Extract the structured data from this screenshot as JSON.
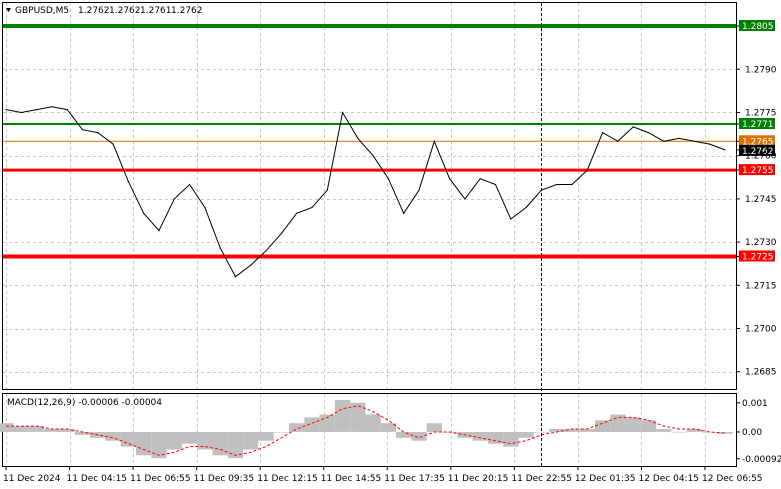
{
  "header": {
    "symbol": "GBPUSD,M5",
    "open": "1.2762",
    "high": "1.2762",
    "low": "1.2761",
    "close": "1.2762"
  },
  "macd": {
    "label": "MACD(12,26,9) -0.00006 -0.00004",
    "ticks": [
      "0.001",
      "0.00",
      "-0.00092"
    ],
    "histogram_color": "#c0c0c0",
    "signal_color": "#ff0000"
  },
  "price_axis": [
    "1.2805",
    "1.2790",
    "1.2775",
    "1.2771",
    "1.2765",
    "1.2762",
    "1.2760",
    "1.2755",
    "1.2745",
    "1.2730",
    "1.2725",
    "1.2715",
    "1.2700",
    "1.2685"
  ],
  "time_axis": [
    "11 Dec 2024",
    "11 Dec 04:15",
    "11 Dec 06:55",
    "11 Dec 09:35",
    "11 Dec 12:15",
    "11 Dec 14:55",
    "11 Dec 17:35",
    "11 Dec 20:15",
    "11 Dec 22:55",
    "12 Dec 01:35",
    "12 Dec 04:15",
    "12 Dec 06:55"
  ],
  "levels": [
    {
      "name": "resistance-top",
      "price": 1.2805,
      "label": "1.2805",
      "color": "#008000"
    },
    {
      "name": "resistance-mid",
      "price": 1.2771,
      "label": "1.2771",
      "color": "#008000"
    },
    {
      "name": "current-ask",
      "price": 1.2765,
      "label": "1.2765",
      "color": "#e07000"
    },
    {
      "name": "current-bid",
      "price": 1.2762,
      "label": "1.2762",
      "color": "#000000"
    },
    {
      "name": "support-mid",
      "price": 1.2755,
      "label": "1.2755",
      "color": "#ff0000"
    },
    {
      "name": "support-low",
      "price": 1.2725,
      "label": "1.2725",
      "color": "#ff0000"
    }
  ],
  "chart_data": {
    "type": "line",
    "x": [
      "11 Dec 00:00",
      "11 Dec 01:00",
      "11 Dec 02:00",
      "11 Dec 03:00",
      "11 Dec 04:00",
      "11 Dec 05:00",
      "11 Dec 06:00",
      "11 Dec 07:00",
      "11 Dec 07:30",
      "11 Dec 08:00",
      "11 Dec 08:30",
      "11 Dec 09:00",
      "11 Dec 09:30",
      "11 Dec 10:00",
      "11 Dec 10:30",
      "11 Dec 11:00",
      "11 Dec 11:30",
      "11 Dec 12:00",
      "11 Dec 12:30",
      "11 Dec 13:00",
      "11 Dec 13:30",
      "11 Dec 14:00",
      "11 Dec 14:30",
      "11 Dec 15:00",
      "11 Dec 15:30",
      "11 Dec 16:00",
      "11 Dec 16:30",
      "11 Dec 17:00",
      "11 Dec 17:30",
      "11 Dec 18:00",
      "11 Dec 18:30",
      "11 Dec 19:00",
      "11 Dec 19:30",
      "11 Dec 20:00",
      "11 Dec 20:30",
      "11 Dec 21:00",
      "11 Dec 22:00",
      "11 Dec 23:00",
      "12 Dec 00:00",
      "12 Dec 00:30",
      "12 Dec 01:00",
      "12 Dec 01:30",
      "12 Dec 02:00",
      "12 Dec 03:00",
      "12 Dec 04:00",
      "12 Dec 05:00",
      "12 Dec 06:00",
      "12 Dec 06:55"
    ],
    "series": [
      {
        "values": [
          1.2776,
          1.2775,
          1.2776,
          1.2777,
          1.2776,
          1.2769,
          1.2768,
          1.2764,
          1.2751,
          1.274,
          1.2734,
          1.2745,
          1.275,
          1.2742,
          1.2728,
          1.2718,
          1.2722,
          1.2727,
          1.2733,
          1.274,
          1.2742,
          1.2748,
          1.2775,
          1.2766,
          1.276,
          1.2752,
          1.274,
          1.2748,
          1.2765,
          1.2752,
          1.2745,
          1.2752,
          1.275,
          1.2738,
          1.2742,
          1.2748,
          1.275,
          1.275,
          1.2755,
          1.2768,
          1.2765,
          1.277,
          1.2768,
          1.2765,
          1.2766,
          1.2765,
          1.2764,
          1.2762
        ]
      }
    ],
    "ylim": [
      1.2679,
      1.2813
    ]
  },
  "macd_data": {
    "hist": [
      0.0003,
      0.0002,
      0.0002,
      0.0001,
      0.0001,
      -0.0001,
      -0.0002,
      -0.0003,
      -0.0005,
      -0.0008,
      -0.0009,
      -0.0006,
      -0.0004,
      -0.0006,
      -0.0008,
      -0.0009,
      -0.0006,
      -0.0003,
      0.0,
      0.0003,
      0.0005,
      0.0006,
      0.0011,
      0.001,
      0.0006,
      0.0003,
      -0.0002,
      -0.0003,
      0.0003,
      0.0,
      -0.0002,
      -0.0003,
      -0.0004,
      -0.0005,
      -0.0002,
      0.0,
      0.0001,
      0.0001,
      0.0001,
      0.0004,
      0.0006,
      0.0005,
      0.0004,
      0.0001,
      0.0,
      0.0001,
      0.0,
      -6e-05
    ],
    "signal": [
      0.0002,
      0.0002,
      0.0002,
      0.0001,
      0.0001,
      0.0,
      -0.0001,
      -0.0002,
      -0.0004,
      -0.0006,
      -0.0008,
      -0.0007,
      -0.0005,
      -0.0005,
      -0.0006,
      -0.0008,
      -0.0007,
      -0.0005,
      -0.0002,
      0.0001,
      0.0003,
      0.0005,
      0.0008,
      0.0009,
      0.0007,
      0.0004,
      0.0,
      -0.0002,
      0.0,
      0.0,
      -0.0001,
      -0.0002,
      -0.0003,
      -0.0004,
      -0.0003,
      -0.0001,
      0.0,
      0.0001,
      0.0001,
      0.0003,
      0.0005,
      0.0005,
      0.0004,
      0.0002,
      0.0001,
      0.0001,
      0.0,
      -4e-05
    ],
    "ylim": [
      -0.0011,
      0.0012
    ]
  }
}
